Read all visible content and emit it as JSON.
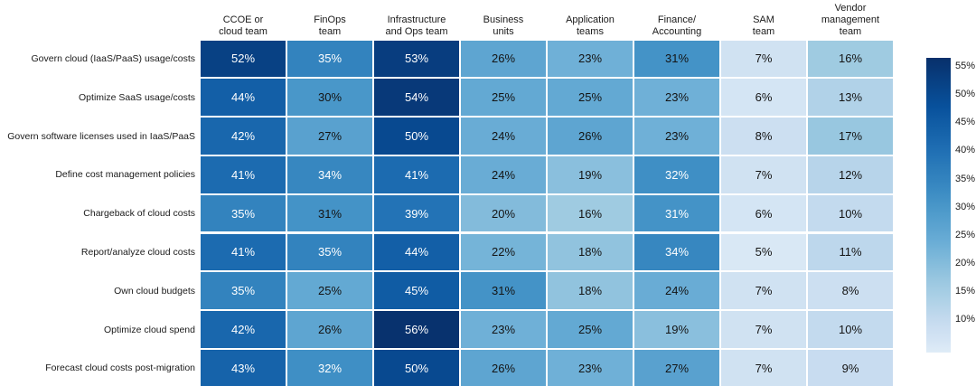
{
  "chart_data": {
    "type": "heatmap",
    "columns": [
      "CCOE or\ncloud team",
      "FinOps\nteam",
      "Infrastructure\nand Ops team",
      "Business\nunits",
      "Application\nteams",
      "Finance/\nAccounting",
      "SAM\nteam",
      "Vendor\nmanagement\nteam"
    ],
    "rows": [
      "Govern cloud (IaaS/PaaS) usage/costs",
      "Optimize SaaS usage/costs",
      "Govern software licenses used in IaaS/PaaS",
      "Define cost management policies",
      "Chargeback of cloud costs",
      "Report/analyze cloud costs",
      "Own cloud budgets",
      "Optimize cloud spend",
      "Forecast cloud costs post-migration"
    ],
    "values": [
      [
        52,
        35,
        53,
        26,
        23,
        31,
        7,
        16
      ],
      [
        44,
        30,
        54,
        25,
        25,
        23,
        6,
        13
      ],
      [
        42,
        27,
        50,
        24,
        26,
        23,
        8,
        17
      ],
      [
        41,
        34,
        41,
        24,
        19,
        32,
        7,
        12
      ],
      [
        35,
        31,
        39,
        20,
        16,
        31,
        6,
        10
      ],
      [
        41,
        35,
        44,
        22,
        18,
        34,
        5,
        11
      ],
      [
        35,
        25,
        45,
        31,
        18,
        24,
        7,
        8
      ],
      [
        42,
        26,
        56,
        23,
        25,
        19,
        7,
        10
      ],
      [
        43,
        32,
        50,
        26,
        23,
        27,
        7,
        9
      ]
    ],
    "value_suffix": "%",
    "white_label": [
      [
        1,
        1,
        1,
        0,
        0,
        0,
        0,
        0
      ],
      [
        1,
        0,
        1,
        0,
        0,
        0,
        0,
        0
      ],
      [
        1,
        0,
        1,
        0,
        0,
        0,
        0,
        0
      ],
      [
        1,
        1,
        1,
        0,
        0,
        1,
        0,
        0
      ],
      [
        1,
        0,
        1,
        0,
        0,
        1,
        0,
        0
      ],
      [
        1,
        1,
        1,
        0,
        0,
        1,
        0,
        0
      ],
      [
        1,
        0,
        1,
        0,
        0,
        0,
        0,
        0
      ],
      [
        1,
        0,
        1,
        0,
        0,
        0,
        0,
        0
      ],
      [
        1,
        1,
        1,
        0,
        0,
        0,
        0,
        0
      ]
    ],
    "scale": {
      "vmin": 4,
      "vmax": 56.5
    },
    "colormap": {
      "name": "Blues",
      "t0": 0.12,
      "gamma": 0.85,
      "anchors": [
        [
          0.0,
          "#f7fbff"
        ],
        [
          0.125,
          "#deebf7"
        ],
        [
          0.25,
          "#c6dbef"
        ],
        [
          0.375,
          "#9ecae1"
        ],
        [
          0.5,
          "#6baed6"
        ],
        [
          0.625,
          "#4292c6"
        ],
        [
          0.75,
          "#2171b5"
        ],
        [
          0.875,
          "#08519c"
        ],
        [
          1.0,
          "#08306b"
        ]
      ]
    },
    "colorbar": {
      "tick_values": [
        55,
        50,
        45,
        40,
        35,
        30,
        25,
        20,
        15,
        10
      ],
      "tick_labels": [
        "55%",
        "50%",
        "45%",
        "40%",
        "35%",
        "30%",
        "25%",
        "20%",
        "15%",
        "10%"
      ]
    },
    "text_color_dark": "#141414",
    "text_color_light": "#ffffff",
    "background": "#ffffff"
  }
}
